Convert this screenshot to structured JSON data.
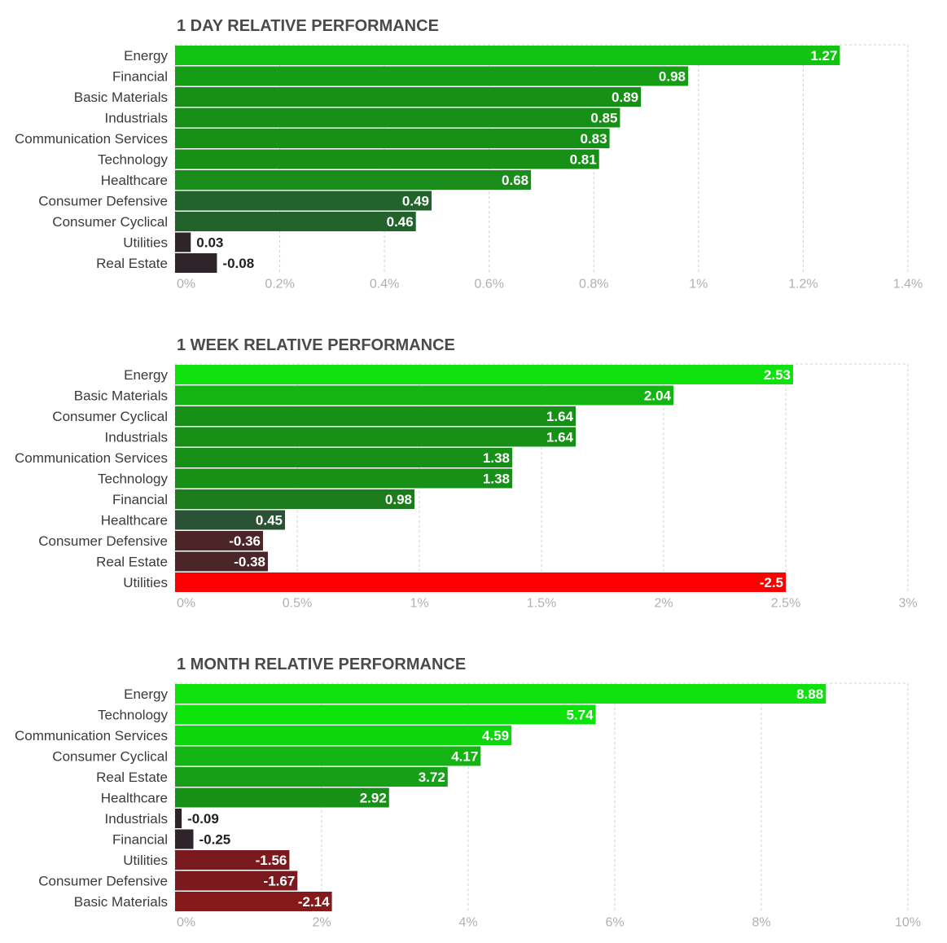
{
  "chart_data": [
    {
      "type": "bar",
      "orientation": "horizontal",
      "title": "1 DAY RELATIVE PERFORMANCE",
      "categories": [
        "Energy",
        "Financial",
        "Basic Materials",
        "Industrials",
        "Communication Services",
        "Technology",
        "Healthcare",
        "Consumer Defensive",
        "Consumer Cyclical",
        "Utilities",
        "Real Estate"
      ],
      "values": [
        1.27,
        0.98,
        0.89,
        0.85,
        0.83,
        0.81,
        0.68,
        0.49,
        0.46,
        0.03,
        -0.08
      ],
      "value_labels": [
        "1.27",
        "0.98",
        "0.89",
        "0.85",
        "0.83",
        "0.81",
        "0.68",
        "0.49",
        "0.46",
        "0.03",
        "-0.08"
      ],
      "xlim": [
        0,
        1.4
      ],
      "ticks": [
        0,
        0.2,
        0.4,
        0.6,
        0.8,
        1,
        1.2,
        1.4
      ],
      "tick_labels": [
        "0%",
        "0.2%",
        "0.4%",
        "0.6%",
        "0.8%",
        "1%",
        "1.2%",
        "1.4%"
      ],
      "bar_colors": [
        "#12c312",
        "#169d16",
        "#179017",
        "#179017",
        "#179017",
        "#179017",
        "#1a8c1a",
        "#21632b",
        "#21632b",
        "#2e2429",
        "#2e2429"
      ],
      "label_inside": [
        true,
        true,
        true,
        true,
        true,
        true,
        true,
        true,
        true,
        false,
        false
      ]
    },
    {
      "type": "bar",
      "orientation": "horizontal",
      "title": "1 WEEK RELATIVE PERFORMANCE",
      "categories": [
        "Energy",
        "Basic Materials",
        "Consumer Cyclical",
        "Industrials",
        "Communication Services",
        "Technology",
        "Financial",
        "Healthcare",
        "Consumer Defensive",
        "Real Estate",
        "Utilities"
      ],
      "values": [
        2.53,
        2.04,
        1.64,
        1.64,
        1.38,
        1.38,
        0.98,
        0.45,
        -0.36,
        -0.38,
        -2.5
      ],
      "value_labels": [
        "2.53",
        "2.04",
        "1.64",
        "1.64",
        "1.38",
        "1.38",
        "0.98",
        "0.45",
        "-0.36",
        "-0.38",
        "-2.5"
      ],
      "xlim": [
        0,
        3
      ],
      "ticks": [
        0,
        0.5,
        1,
        1.5,
        2,
        2.5,
        3
      ],
      "tick_labels": [
        "0%",
        "0.5%",
        "1%",
        "1.5%",
        "2%",
        "2.5%",
        "3%"
      ],
      "bar_colors": [
        "#0fe10f",
        "#14b414",
        "#179017",
        "#179017",
        "#179017",
        "#179017",
        "#1c7c1c",
        "#295334",
        "#4c2529",
        "#4c2529",
        "#fd0000"
      ],
      "label_inside": [
        true,
        true,
        true,
        true,
        true,
        true,
        true,
        true,
        true,
        true,
        true
      ]
    },
    {
      "type": "bar",
      "orientation": "horizontal",
      "title": "1 MONTH RELATIVE PERFORMANCE",
      "categories": [
        "Energy",
        "Technology",
        "Communication Services",
        "Consumer Cyclical",
        "Real Estate",
        "Healthcare",
        "Industrials",
        "Financial",
        "Utilities",
        "Consumer Defensive",
        "Basic Materials"
      ],
      "values": [
        8.88,
        5.74,
        4.59,
        4.17,
        3.72,
        2.92,
        -0.09,
        -0.25,
        -1.56,
        -1.67,
        -2.14
      ],
      "value_labels": [
        "8.88",
        "5.74",
        "4.59",
        "4.17",
        "3.72",
        "2.92",
        "-0.09",
        "-0.25",
        "-1.56",
        "-1.67",
        "-2.14"
      ],
      "xlim": [
        0,
        10
      ],
      "ticks": [
        0,
        2,
        4,
        6,
        8,
        10
      ],
      "tick_labels": [
        "0%",
        "2%",
        "4%",
        "6%",
        "8%",
        "10%"
      ],
      "bar_colors": [
        "#0fe10f",
        "#0be30b",
        "#0bd70b",
        "#14b414",
        "#179f17",
        "#179017",
        "#2e2429",
        "#2e2429",
        "#7b1a1e",
        "#7b1a1e",
        "#861a1a"
      ],
      "label_inside": [
        true,
        true,
        true,
        true,
        true,
        true,
        false,
        false,
        true,
        true,
        true
      ]
    }
  ]
}
